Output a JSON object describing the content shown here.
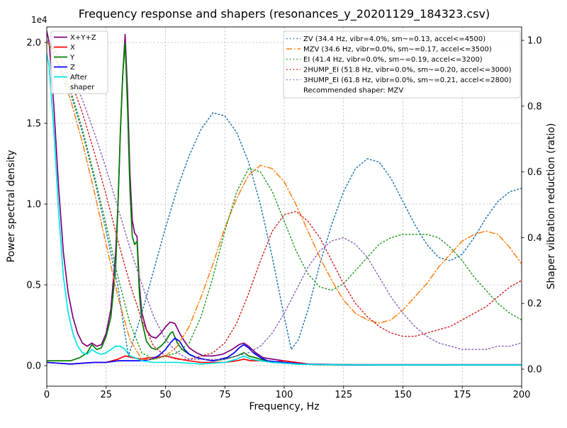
{
  "figure": {
    "title": "Frequency response and shapers (resonances_y_20201129_184323.csv)",
    "xlabel": "Frequency, Hz",
    "ylabel_left": "Power spectral density",
    "ylabel_right": "Shaper vibration reduction (ratio)",
    "offset_text": "1e4"
  },
  "chart_data": {
    "type": "line",
    "title": "Frequency response and shapers (resonances_y_20201129_184323.csv)",
    "xlabel": "Frequency, Hz",
    "ylabel": "Power spectral density",
    "y2label": "Shaper vibration reduction (ratio)",
    "y_scale": "1e4",
    "xlim": [
      0,
      200
    ],
    "ylim": [
      -0.13,
      2.1
    ],
    "y2lim": [
      -0.05,
      1.04
    ],
    "x_ticks": [
      0,
      25,
      50,
      75,
      100,
      125,
      150,
      175,
      200
    ],
    "y_ticks": [
      0.0,
      0.5,
      1.0,
      1.5,
      2.0
    ],
    "y2_ticks": [
      0.0,
      0.2,
      0.4,
      0.6,
      0.8,
      1.0
    ],
    "grid": true,
    "recommended": "Recommended shaper: MZV",
    "psd_series": [
      {
        "name": "X+Y+Z",
        "color": "#800080",
        "linestyle": "solid",
        "x": [
          0,
          1,
          3,
          5,
          7,
          9,
          11,
          13,
          15,
          17,
          19,
          21,
          23,
          25,
          27,
          29,
          30,
          31,
          32,
          33,
          34,
          35,
          36,
          37,
          38,
          39,
          40,
          42,
          44,
          46,
          48,
          50,
          52,
          54,
          56,
          58,
          60,
          63,
          66,
          70,
          74,
          78,
          81,
          83,
          85,
          88,
          91,
          95,
          100,
          105,
          110,
          120,
          140,
          160,
          180,
          200
        ],
        "y": [
          2.07,
          2.0,
          1.6,
          1.1,
          0.7,
          0.45,
          0.3,
          0.2,
          0.14,
          0.12,
          0.14,
          0.12,
          0.13,
          0.2,
          0.35,
          0.7,
          1.0,
          1.45,
          1.8,
          2.05,
          1.7,
          1.2,
          0.9,
          0.82,
          0.8,
          0.5,
          0.33,
          0.22,
          0.18,
          0.17,
          0.2,
          0.24,
          0.27,
          0.26,
          0.2,
          0.15,
          0.11,
          0.08,
          0.06,
          0.06,
          0.07,
          0.1,
          0.13,
          0.14,
          0.12,
          0.08,
          0.05,
          0.04,
          0.03,
          0.02,
          0.01,
          0.007,
          0.006,
          0.006,
          0.006,
          0.006
        ]
      },
      {
        "name": "X",
        "color": "#ff0000",
        "linestyle": "solid",
        "x": [
          0,
          5,
          10,
          15,
          20,
          25,
          30,
          33,
          36,
          40,
          43,
          46,
          50,
          53,
          56,
          60,
          65,
          70,
          75,
          80,
          83,
          86,
          90,
          95,
          100,
          105,
          110,
          120,
          140,
          160,
          180,
          200
        ],
        "y": [
          0.02,
          0.015,
          0.01,
          0.015,
          0.02,
          0.02,
          0.04,
          0.06,
          0.05,
          0.04,
          0.05,
          0.05,
          0.06,
          0.05,
          0.04,
          0.03,
          0.02,
          0.02,
          0.02,
          0.03,
          0.04,
          0.03,
          0.03,
          0.02,
          0.03,
          0.02,
          0.01,
          0.007,
          0.005,
          0.005,
          0.005,
          0.005
        ]
      },
      {
        "name": "Y",
        "color": "#008000",
        "linestyle": "solid",
        "x": [
          0,
          5,
          10,
          14,
          17,
          19,
          21,
          23,
          25,
          27,
          29,
          30,
          31,
          32,
          33,
          34,
          35,
          36,
          37,
          38,
          39,
          40,
          42,
          44,
          46,
          48,
          50,
          52,
          53,
          55,
          57,
          60,
          63,
          66,
          70,
          75,
          80,
          83,
          85,
          90,
          95,
          100,
          105,
          110,
          120,
          140,
          160,
          180,
          200
        ],
        "y": [
          0.03,
          0.03,
          0.03,
          0.05,
          0.08,
          0.13,
          0.1,
          0.11,
          0.18,
          0.3,
          0.6,
          1.0,
          1.45,
          1.8,
          2.0,
          1.6,
          1.1,
          0.8,
          0.75,
          0.77,
          0.45,
          0.28,
          0.15,
          0.11,
          0.1,
          0.12,
          0.15,
          0.2,
          0.21,
          0.14,
          0.1,
          0.07,
          0.05,
          0.04,
          0.03,
          0.04,
          0.06,
          0.08,
          0.06,
          0.04,
          0.02,
          0.015,
          0.01,
          0.008,
          0.005,
          0.004,
          0.004,
          0.004,
          0.004
        ]
      },
      {
        "name": "Z",
        "color": "#0000ff",
        "linestyle": "solid",
        "x": [
          0,
          5,
          10,
          15,
          20,
          25,
          30,
          35,
          40,
          44,
          47,
          50,
          52,
          54,
          56,
          58,
          60,
          63,
          66,
          70,
          73,
          76,
          79,
          81,
          83,
          85,
          87,
          90,
          93,
          96,
          100,
          104,
          108,
          115,
          125,
          140,
          160,
          180,
          200
        ],
        "y": [
          0.02,
          0.015,
          0.01,
          0.015,
          0.02,
          0.02,
          0.03,
          0.03,
          0.03,
          0.04,
          0.06,
          0.1,
          0.14,
          0.17,
          0.15,
          0.1,
          0.07,
          0.05,
          0.04,
          0.03,
          0.04,
          0.05,
          0.08,
          0.11,
          0.13,
          0.11,
          0.08,
          0.05,
          0.03,
          0.025,
          0.02,
          0.015,
          0.01,
          0.007,
          0.005,
          0.005,
          0.005,
          0.005,
          0.005
        ]
      },
      {
        "name": "After shaper",
        "legend_lines": [
          "After",
          "shaper"
        ],
        "color": "#00e5e5",
        "linestyle": "solid",
        "x": [
          0,
          1,
          3,
          5,
          7,
          9,
          11,
          13,
          15,
          17,
          19,
          21,
          23,
          25,
          27,
          29,
          31,
          33,
          35,
          37,
          40,
          45,
          50,
          55,
          60,
          65,
          70,
          75,
          80,
          83,
          86,
          90,
          95,
          100,
          105,
          110,
          120,
          140,
          160,
          180,
          200
        ],
        "y": [
          1.93,
          1.85,
          1.45,
          0.95,
          0.55,
          0.33,
          0.2,
          0.12,
          0.08,
          0.07,
          0.1,
          0.08,
          0.07,
          0.08,
          0.1,
          0.12,
          0.12,
          0.1,
          0.06,
          0.05,
          0.03,
          0.02,
          0.02,
          0.02,
          0.015,
          0.01,
          0.015,
          0.02,
          0.04,
          0.06,
          0.04,
          0.03,
          0.02,
          0.015,
          0.01,
          0.008,
          0.006,
          0.005,
          0.005,
          0.005,
          0.005
        ]
      }
    ],
    "shaper_series": [
      {
        "name": "ZV",
        "label": "ZV (34.4 Hz, vibr=4.0%, sm~=0.13, accel<=4500)",
        "color": "#1f77b4",
        "linestyle": "dotted",
        "x": [
          0,
          5,
          10,
          15,
          20,
          25,
          30,
          32,
          34.4,
          37,
          40,
          45,
          50,
          55,
          60,
          65,
          70,
          75,
          80,
          85,
          90,
          95,
          100,
          103,
          106,
          110,
          115,
          120,
          125,
          130,
          135,
          140,
          145,
          150,
          155,
          160,
          165,
          170,
          175,
          180,
          185,
          190,
          195,
          200
        ],
        "values": [
          1.0,
          0.93,
          0.84,
          0.72,
          0.58,
          0.42,
          0.25,
          0.15,
          0.04,
          0.1,
          0.17,
          0.3,
          0.43,
          0.55,
          0.65,
          0.73,
          0.78,
          0.77,
          0.72,
          0.63,
          0.5,
          0.34,
          0.16,
          0.06,
          0.09,
          0.18,
          0.32,
          0.44,
          0.54,
          0.61,
          0.64,
          0.63,
          0.58,
          0.51,
          0.44,
          0.38,
          0.34,
          0.33,
          0.35,
          0.4,
          0.46,
          0.51,
          0.54,
          0.55
        ]
      },
      {
        "name": "MZV",
        "label": "MZV (34.6 Hz, vibr=0.0%, sm~=0.17, accel<=3500)",
        "color": "#ff7f0e",
        "linestyle": "dashdot",
        "x": [
          0,
          5,
          10,
          15,
          20,
          25,
          30,
          35,
          40,
          45,
          50,
          55,
          60,
          65,
          70,
          75,
          80,
          85,
          90,
          95,
          100,
          105,
          110,
          115,
          120,
          125,
          130,
          135,
          140,
          145,
          150,
          155,
          160,
          165,
          170,
          175,
          180,
          185,
          190,
          195,
          200
        ],
        "values": [
          1.0,
          0.92,
          0.82,
          0.69,
          0.54,
          0.38,
          0.22,
          0.09,
          0.03,
          0.03,
          0.04,
          0.07,
          0.13,
          0.22,
          0.32,
          0.43,
          0.52,
          0.59,
          0.62,
          0.61,
          0.57,
          0.5,
          0.42,
          0.34,
          0.27,
          0.21,
          0.17,
          0.15,
          0.14,
          0.15,
          0.18,
          0.22,
          0.26,
          0.31,
          0.35,
          0.39,
          0.41,
          0.42,
          0.41,
          0.37,
          0.32
        ]
      },
      {
        "name": "EI",
        "label": "EI (41.4 Hz, vibr=0.0%, sm~=0.19, accel<=3200)",
        "color": "#2ca02c",
        "linestyle": "dotted",
        "x": [
          0,
          5,
          10,
          15,
          20,
          25,
          30,
          35,
          40,
          45,
          50,
          55,
          60,
          65,
          70,
          75,
          80,
          85,
          90,
          95,
          100,
          105,
          110,
          115,
          120,
          125,
          130,
          135,
          140,
          145,
          150,
          155,
          160,
          165,
          170,
          175,
          180,
          185,
          190,
          195,
          200
        ],
        "values": [
          1.0,
          0.93,
          0.85,
          0.73,
          0.59,
          0.44,
          0.28,
          0.14,
          0.05,
          0.03,
          0.04,
          0.05,
          0.08,
          0.16,
          0.28,
          0.42,
          0.54,
          0.61,
          0.6,
          0.54,
          0.45,
          0.36,
          0.29,
          0.25,
          0.24,
          0.26,
          0.3,
          0.34,
          0.38,
          0.4,
          0.41,
          0.41,
          0.41,
          0.4,
          0.37,
          0.33,
          0.28,
          0.24,
          0.2,
          0.17,
          0.15
        ]
      },
      {
        "name": "2HUMP_EI",
        "label": "2HUMP_EI (51.8 Hz, vibr=0.0%, sm~=0.20, accel<=3000)",
        "color": "#d62728",
        "linestyle": "dotted",
        "x": [
          0,
          5,
          10,
          15,
          20,
          25,
          30,
          35,
          40,
          45,
          50,
          55,
          60,
          65,
          70,
          75,
          80,
          85,
          90,
          95,
          100,
          105,
          110,
          115,
          120,
          125,
          130,
          135,
          140,
          145,
          150,
          155,
          160,
          165,
          170,
          175,
          180,
          185,
          190,
          195,
          200
        ],
        "values": [
          1.0,
          0.95,
          0.88,
          0.78,
          0.66,
          0.53,
          0.39,
          0.26,
          0.15,
          0.07,
          0.04,
          0.03,
          0.03,
          0.04,
          0.05,
          0.08,
          0.14,
          0.23,
          0.33,
          0.42,
          0.47,
          0.48,
          0.45,
          0.4,
          0.33,
          0.26,
          0.2,
          0.16,
          0.13,
          0.11,
          0.1,
          0.1,
          0.11,
          0.12,
          0.13,
          0.15,
          0.17,
          0.19,
          0.22,
          0.25,
          0.27
        ]
      },
      {
        "name": "3HUMP_EI",
        "label": "3HUMP_EI (61.8 Hz, vibr=0.0%, sm~=0.21, accel<=2800)",
        "color": "#9467bd",
        "linestyle": "dotted",
        "x": [
          0,
          5,
          10,
          15,
          20,
          25,
          30,
          35,
          40,
          45,
          50,
          55,
          60,
          65,
          70,
          75,
          80,
          85,
          90,
          95,
          100,
          105,
          110,
          115,
          120,
          125,
          130,
          135,
          140,
          145,
          150,
          155,
          160,
          165,
          170,
          175,
          180,
          185,
          190,
          195,
          200
        ],
        "values": [
          1.0,
          0.96,
          0.9,
          0.82,
          0.72,
          0.61,
          0.49,
          0.37,
          0.26,
          0.16,
          0.09,
          0.05,
          0.03,
          0.03,
          0.03,
          0.03,
          0.04,
          0.05,
          0.07,
          0.11,
          0.17,
          0.24,
          0.31,
          0.36,
          0.39,
          0.4,
          0.38,
          0.34,
          0.28,
          0.22,
          0.17,
          0.13,
          0.1,
          0.08,
          0.07,
          0.06,
          0.06,
          0.06,
          0.07,
          0.07,
          0.08
        ]
      }
    ]
  },
  "style": {
    "grid_color": "#bbbbbb",
    "frame_color": "#000000",
    "legend_border": "#cccccc",
    "legend_bg": "#ffffff"
  }
}
